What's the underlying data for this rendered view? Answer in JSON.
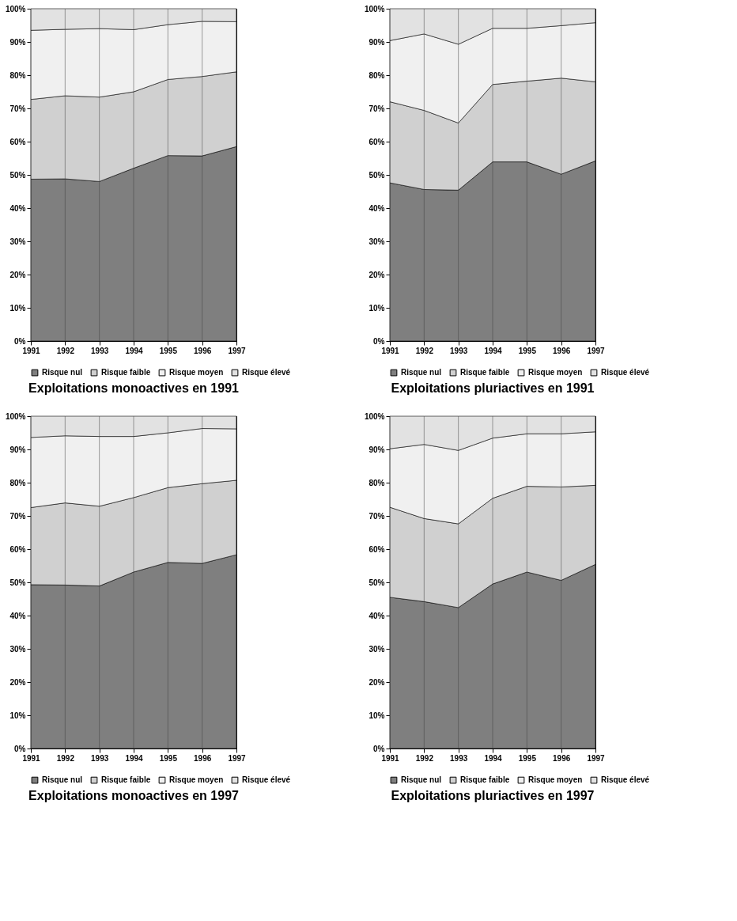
{
  "chart_data": [
    {
      "type": "area",
      "title": "Exploitations monoactives en 1991",
      "stacked": true,
      "x": [
        1991,
        1992,
        1993,
        1994,
        1995,
        1996,
        1997
      ],
      "xlim": [
        1991,
        1997
      ],
      "xticks": [
        1991,
        1992,
        1993,
        1994,
        1995,
        1996,
        1997
      ],
      "ylim": [
        0,
        100
      ],
      "yticks": [
        {
          "value": 0,
          "label": "0%"
        },
        {
          "value": 10,
          "label": "10%"
        },
        {
          "value": 20,
          "label": "20%"
        },
        {
          "value": 30,
          "label": "30%"
        },
        {
          "value": 40,
          "label": "40%"
        },
        {
          "value": 50,
          "label": "50%"
        },
        {
          "value": 60,
          "label": "60%"
        },
        {
          "value": 70,
          "label": "70%"
        },
        {
          "value": 80,
          "label": "80%"
        },
        {
          "value": 90,
          "label": "90%"
        },
        {
          "value": 100,
          "label": "100%"
        }
      ],
      "grid": "x",
      "legend": "bottom",
      "series": [
        {
          "name": "Risque nul",
          "color": "#7f7f7f",
          "values": [
            48.7,
            48.8,
            48.0,
            52.0,
            55.8,
            55.7,
            58.5
          ]
        },
        {
          "name": "Risque faible",
          "color": "#d0d0d0",
          "values": [
            24.0,
            25.0,
            25.4,
            23.0,
            22.9,
            23.9,
            22.5
          ]
        },
        {
          "name": "Risque moyen",
          "color": "#f0f0f0",
          "values": [
            20.8,
            20.0,
            20.6,
            18.7,
            16.5,
            16.6,
            15.1
          ]
        },
        {
          "name": "Risque élevé",
          "color": "#e2e2e2",
          "values": [
            6.5,
            6.2,
            6.0,
            6.3,
            4.8,
            3.8,
            3.9
          ]
        }
      ]
    },
    {
      "type": "area",
      "title": "Exploitations pluriactives en 1991",
      "stacked": true,
      "x": [
        1991,
        1992,
        1993,
        1994,
        1995,
        1996,
        1997
      ],
      "xlim": [
        1991,
        1997
      ],
      "xticks": [
        1991,
        1992,
        1993,
        1994,
        1995,
        1996,
        1997
      ],
      "ylim": [
        0,
        100
      ],
      "yticks": [
        {
          "value": 0,
          "label": "0%"
        },
        {
          "value": 10,
          "label": "10%"
        },
        {
          "value": 20,
          "label": "20%"
        },
        {
          "value": 30,
          "label": "30%"
        },
        {
          "value": 40,
          "label": "40%"
        },
        {
          "value": 50,
          "label": "50%"
        },
        {
          "value": 60,
          "label": "60%"
        },
        {
          "value": 70,
          "label": "70%"
        },
        {
          "value": 80,
          "label": "80%"
        },
        {
          "value": 90,
          "label": "90%"
        },
        {
          "value": 100,
          "label": "100%"
        }
      ],
      "grid": "x",
      "legend": "bottom",
      "series": [
        {
          "name": "Risque nul",
          "color": "#7f7f7f",
          "values": [
            47.6,
            45.6,
            45.4,
            53.9,
            53.9,
            50.2,
            54.2
          ]
        },
        {
          "name": "Risque faible",
          "color": "#d0d0d0",
          "values": [
            24.4,
            23.8,
            20.2,
            23.3,
            24.3,
            28.9,
            23.8
          ]
        },
        {
          "name": "Risque moyen",
          "color": "#f0f0f0",
          "values": [
            18.4,
            23.0,
            23.7,
            16.9,
            15.9,
            15.8,
            17.8
          ]
        },
        {
          "name": "Risque élevé",
          "color": "#e2e2e2",
          "values": [
            9.6,
            7.6,
            10.7,
            5.9,
            5.9,
            5.1,
            4.2
          ]
        }
      ]
    },
    {
      "type": "area",
      "title": "Exploitations monoactives en 1997",
      "stacked": true,
      "x": [
        1991,
        1992,
        1993,
        1994,
        1995,
        1996,
        1997
      ],
      "xlim": [
        1991,
        1997
      ],
      "xticks": [
        1991,
        1992,
        1993,
        1994,
        1995,
        1996,
        1997
      ],
      "ylim": [
        0,
        100
      ],
      "yticks": [
        {
          "value": 0,
          "label": "0%"
        },
        {
          "value": 10,
          "label": "10%"
        },
        {
          "value": 20,
          "label": "20%"
        },
        {
          "value": 30,
          "label": "30%"
        },
        {
          "value": 40,
          "label": "40%"
        },
        {
          "value": 50,
          "label": "50%"
        },
        {
          "value": 60,
          "label": "60%"
        },
        {
          "value": 70,
          "label": "70%"
        },
        {
          "value": 80,
          "label": "80%"
        },
        {
          "value": 90,
          "label": "90%"
        },
        {
          "value": 100,
          "label": "100%"
        }
      ],
      "grid": "x",
      "legend": "bottom",
      "series": [
        {
          "name": "Risque nul",
          "color": "#7f7f7f",
          "values": [
            49.3,
            49.2,
            48.9,
            53.1,
            56.0,
            55.7,
            58.3
          ]
        },
        {
          "name": "Risque faible",
          "color": "#d0d0d0",
          "values": [
            23.2,
            24.7,
            24.0,
            22.4,
            22.5,
            24.0,
            22.4
          ]
        },
        {
          "name": "Risque moyen",
          "color": "#f0f0f0",
          "values": [
            21.1,
            20.2,
            21.0,
            18.4,
            16.5,
            16.6,
            15.5
          ]
        },
        {
          "name": "Risque élevé",
          "color": "#e2e2e2",
          "values": [
            6.4,
            5.9,
            6.1,
            6.1,
            5.0,
            3.7,
            3.8
          ]
        }
      ]
    },
    {
      "type": "area",
      "title": "Exploitations pluriactives en 1997",
      "stacked": true,
      "x": [
        1991,
        1992,
        1993,
        1994,
        1995,
        1996,
        1997
      ],
      "xlim": [
        1991,
        1997
      ],
      "xticks": [
        1991,
        1992,
        1993,
        1994,
        1995,
        1996,
        1997
      ],
      "ylim": [
        0,
        100
      ],
      "yticks": [
        {
          "value": 0,
          "label": "0%"
        },
        {
          "value": 10,
          "label": "10%"
        },
        {
          "value": 20,
          "label": "20%"
        },
        {
          "value": 30,
          "label": "30%"
        },
        {
          "value": 40,
          "label": "40%"
        },
        {
          "value": 50,
          "label": "50%"
        },
        {
          "value": 60,
          "label": "60%"
        },
        {
          "value": 70,
          "label": "70%"
        },
        {
          "value": 80,
          "label": "80%"
        },
        {
          "value": 90,
          "label": "90%"
        },
        {
          "value": 100,
          "label": "100%"
        }
      ],
      "grid": "x",
      "legend": "bottom",
      "series": [
        {
          "name": "Risque nul",
          "color": "#7f7f7f",
          "values": [
            45.5,
            44.2,
            42.4,
            49.5,
            53.1,
            50.6,
            55.4
          ]
        },
        {
          "name": "Risque faible",
          "color": "#d0d0d0",
          "values": [
            27.1,
            25.0,
            25.2,
            25.8,
            25.8,
            28.1,
            23.8
          ]
        },
        {
          "name": "Risque moyen",
          "color": "#f0f0f0",
          "values": [
            17.6,
            22.3,
            22.1,
            18.1,
            15.8,
            16.0,
            16.1
          ]
        },
        {
          "name": "Risque élevé",
          "color": "#e2e2e2",
          "values": [
            9.8,
            8.5,
            10.3,
            6.6,
            5.3,
            5.3,
            4.7
          ]
        }
      ]
    }
  ]
}
